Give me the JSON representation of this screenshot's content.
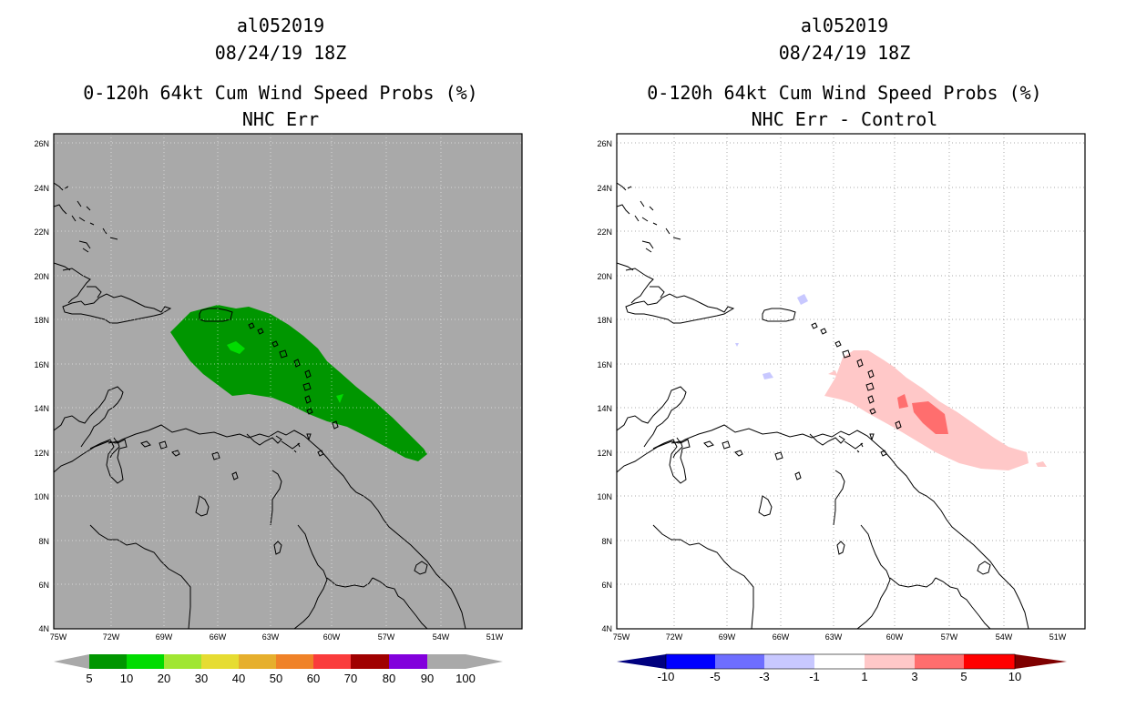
{
  "panels": [
    {
      "storm_id": "al052019",
      "datetime": "08/24/19 18Z",
      "product": "0-120h 64kt Cum Wind Speed Probs (%)",
      "subtitle": "NHC Err",
      "background": "#a9a9a9",
      "lat_labels": [
        "26N",
        "24N",
        "22N",
        "20N",
        "18N",
        "16N",
        "14N",
        "12N",
        "10N",
        "8N",
        "6N",
        "4N"
      ],
      "lon_labels": [
        "75W",
        "72W",
        "69W",
        "66W",
        "63W",
        "60W",
        "57W",
        "54W",
        "51W"
      ],
      "colorbar": {
        "colors": [
          "#009600",
          "#00dc00",
          "#a0e632",
          "#e6dc32",
          "#e6af2d",
          "#f08228",
          "#fa3c3c",
          "#a00000",
          "#8200dc"
        ],
        "labels": [
          "5",
          "10",
          "20",
          "30",
          "40",
          "50",
          "60",
          "70",
          "80",
          "90",
          "100"
        ],
        "end_color": "#a9a9a9"
      }
    },
    {
      "storm_id": "al052019",
      "datetime": "08/24/19 18Z",
      "product": "0-120h 64kt Cum Wind Speed Probs (%)",
      "subtitle": "NHC Err - Control",
      "background": "#ffffff",
      "lat_labels": [
        "26N",
        "24N",
        "22N",
        "20N",
        "18N",
        "16N",
        "14N",
        "12N",
        "10N",
        "8N",
        "6N",
        "4N"
      ],
      "lon_labels": [
        "75W",
        "72W",
        "69W",
        "66W",
        "63W",
        "60W",
        "57W",
        "54W",
        "51W"
      ],
      "colorbar": {
        "colors": [
          "#0000ff",
          "#6e6eff",
          "#c8c8ff",
          "#ffffff",
          "#ffc8c8",
          "#ff6e6e",
          "#ff0000"
        ],
        "labels": [
          "-10",
          "-5",
          "-3",
          "-1",
          "1",
          "3",
          "5",
          "10"
        ],
        "left_end_color": "#00007f",
        "right_end_color": "#7f0000"
      }
    }
  ]
}
